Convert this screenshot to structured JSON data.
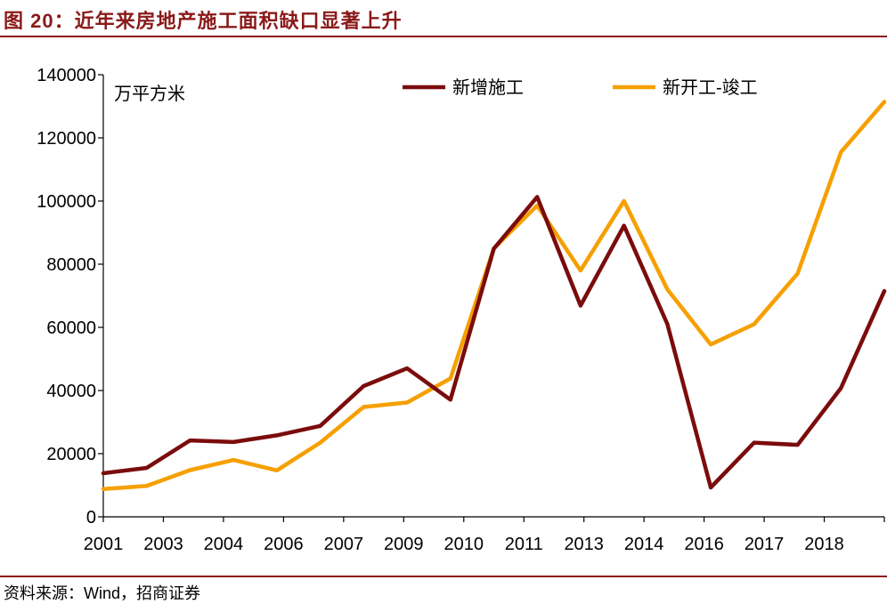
{
  "figure_title": "图 20：近年来房地产施工面积缺口显著上升",
  "source_note": "资料来源：Wind，招商证券",
  "chart_data": {
    "type": "line",
    "title": "",
    "xlabel": "",
    "ylabel": "万平方米",
    "ylim": [
      0,
      140000
    ],
    "yticks": [
      "0",
      "20000",
      "40000",
      "60000",
      "80000",
      "100000",
      "120000",
      "140000"
    ],
    "x_tick_labels": [
      "2001",
      "2003",
      "2004",
      "2006",
      "2007",
      "2009",
      "2010",
      "2011",
      "2013",
      "2014",
      "2016",
      "2017",
      "2018"
    ],
    "n_points": 19,
    "grid": false,
    "legend_position": "top",
    "series": [
      {
        "name": "新增施工",
        "color": "#7b0c0c",
        "values": [
          13800,
          15500,
          24200,
          23700,
          25800,
          28800,
          41400,
          47000,
          37100,
          84900,
          101300,
          66900,
          92200,
          61000,
          9300,
          23500,
          22800,
          40800,
          71500
        ]
      },
      {
        "name": "新开工-竣工",
        "color": "#f5a000",
        "values": [
          8800,
          9800,
          14800,
          18000,
          14700,
          23500,
          34800,
          36200,
          43800,
          85000,
          98600,
          78000,
          100000,
          72000,
          54600,
          61000,
          77000,
          115500,
          131400
        ]
      }
    ]
  }
}
